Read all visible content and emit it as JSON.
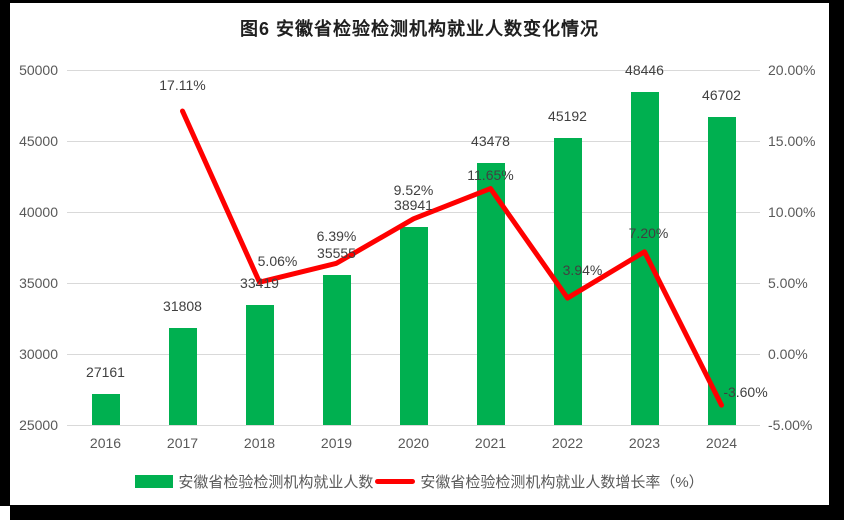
{
  "chart_data": {
    "type": "bar+line",
    "title": "图6  安徽省检验检测机构就业人数变化情况",
    "categories": [
      "2016",
      "2017",
      "2018",
      "2019",
      "2020",
      "2021",
      "2022",
      "2023",
      "2024"
    ],
    "series": [
      {
        "name": "安徽省检验检测机构就业人数",
        "type": "bar",
        "axis": "left",
        "color": "#00B050",
        "values": [
          27161,
          31808,
          33419,
          35555,
          38941,
          43478,
          45192,
          48446,
          46702
        ],
        "labels": [
          "27161",
          "31808",
          "33419",
          "35555",
          "38941",
          "43478",
          "45192",
          "48446",
          "46702"
        ]
      },
      {
        "name": "安徽省检验检测机构就业人数增长率（%）",
        "type": "line",
        "axis": "right",
        "color": "#FF0000",
        "values": [
          null,
          17.11,
          5.06,
          6.39,
          9.52,
          11.65,
          3.94,
          7.2,
          -3.6
        ],
        "labels": [
          null,
          "17.11%",
          "5.06%",
          "6.39%",
          "9.52%",
          "11.65%",
          "3.94%",
          "7.20%",
          "-3.60%"
        ]
      }
    ],
    "left_axis": {
      "min": 25000,
      "max": 50000,
      "step": 5000,
      "ticks": [
        "25000",
        "30000",
        "35000",
        "40000",
        "45000",
        "50000"
      ]
    },
    "right_axis": {
      "min": -5,
      "max": 20,
      "step": 5,
      "ticks": [
        "-5.00%",
        "0.00%",
        "5.00%",
        "10.00%",
        "15.00%",
        "20.00%"
      ]
    },
    "grid": true,
    "legend_position": "bottom",
    "colors": {
      "bar": "#00B050",
      "line": "#FF0000",
      "gridline": "#D9D9D9",
      "axis_text": "#595959",
      "data_label_text": "#404040",
      "chart_background": "#FFFFFF",
      "page_background": "#000000"
    }
  }
}
